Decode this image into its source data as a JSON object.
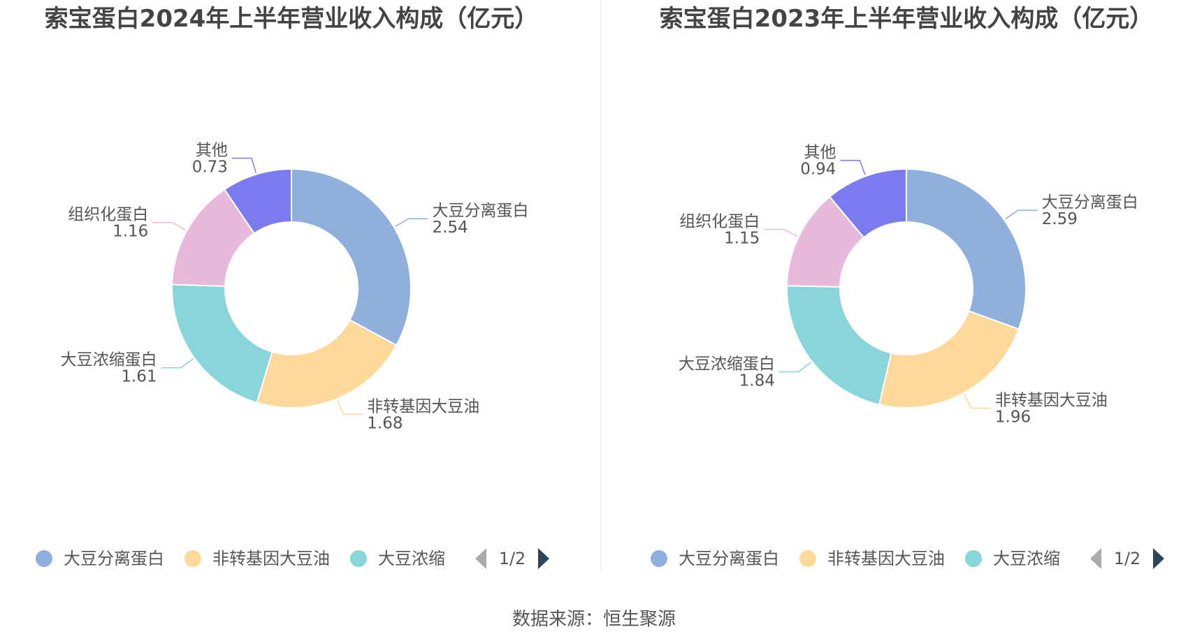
{
  "chart_data": [
    {
      "type": "pie",
      "title": "索宝蛋白2024年上半年营业收入构成（亿元）",
      "categories": [
        "大豆分离蛋白",
        "非转基因大豆油",
        "大豆浓缩蛋白",
        "组织化蛋白",
        "其他"
      ],
      "values": [
        2.54,
        1.68,
        1.61,
        1.16,
        0.73
      ],
      "labels": [
        "2.54",
        "1.68",
        "1.61",
        "1.16",
        "0.73"
      ],
      "colors": [
        "#8fafdc",
        "#fed99a",
        "#88d6da",
        "#e8b9da",
        "#7b7bf0"
      ],
      "legend": {
        "position": "bottom",
        "items": [
          "大豆分离蛋白",
          "非转基因大豆油",
          "大豆浓缩"
        ],
        "page": "1/2"
      }
    },
    {
      "type": "pie",
      "title": "索宝蛋白2023年上半年营业收入构成（亿元）",
      "categories": [
        "大豆分离蛋白",
        "非转基因大豆油",
        "大豆浓缩蛋白",
        "组织化蛋白",
        "其他"
      ],
      "values": [
        2.59,
        1.96,
        1.84,
        1.15,
        0.94
      ],
      "labels": [
        "2.59",
        "1.96",
        "1.84",
        "1.15",
        "0.94"
      ],
      "colors": [
        "#8fafdc",
        "#fed99a",
        "#88d6da",
        "#e8b9da",
        "#7b7bf0"
      ],
      "legend": {
        "position": "bottom",
        "items": [
          "大豆分离蛋白",
          "非转基因大豆油",
          "大豆浓缩"
        ],
        "page": "1/2"
      }
    }
  ],
  "source": "数据来源：恒生聚源"
}
